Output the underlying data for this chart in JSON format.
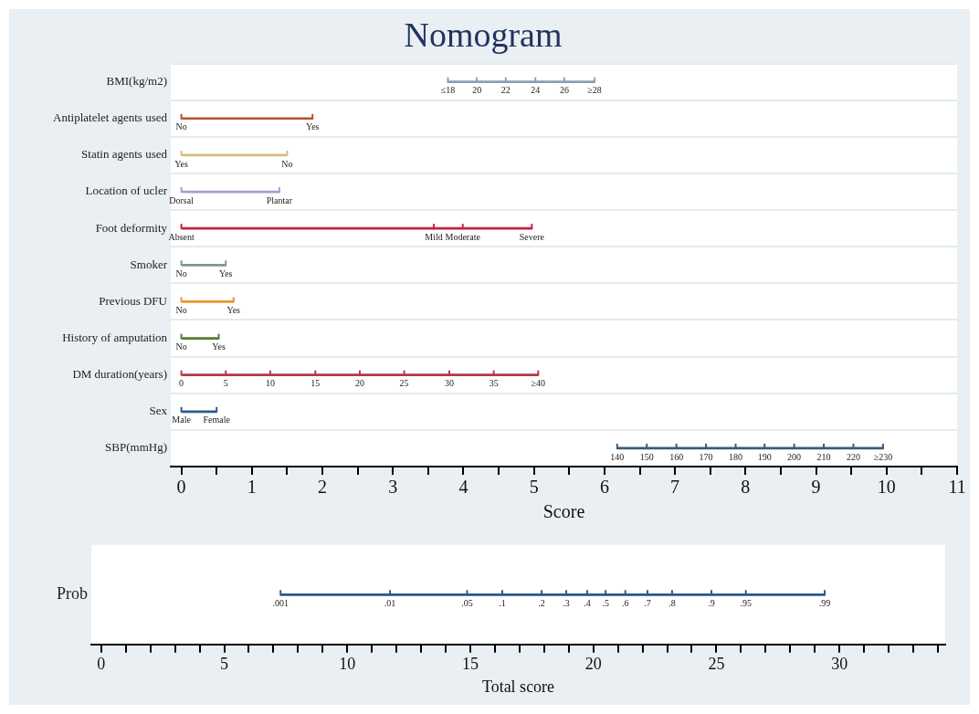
{
  "chart_data": [
    {
      "type": "bar",
      "orientation": "horizontal",
      "title": "Nomogram",
      "xlabel": "Score",
      "categories": [
        "BMI(kg/m2)",
        "Antiplatelet agents used",
        "Statin agents used",
        "Location of ucler",
        "Foot deformity",
        "Smoker",
        "Previous DFU",
        "History of amputation",
        "DM duration(years)",
        "Sex",
        "SBP(mmHg)"
      ],
      "base": [
        3.78,
        0,
        0,
        0,
        0,
        0,
        0,
        0,
        0,
        0,
        6.18
      ],
      "values": [
        2.08,
        1.86,
        1.5,
        1.39,
        4.97,
        0.63,
        0.74,
        0.53,
        5.06,
        0.5,
        3.77
      ],
      "colors": [
        "#8aa0b8",
        "#b5532e",
        "#d8c07a",
        "#a99ad8",
        "#c8213f",
        "#7a9a8a",
        "#e8962a",
        "#5a7a30",
        "#b03a48",
        "#2a5a8a",
        "#3a5a7a"
      ],
      "xlim": [
        -0.15,
        11
      ],
      "xticks": [
        0,
        {
          "value": 0.5,
          "label": null
        },
        1,
        {
          "value": 1.5,
          "label": null
        },
        2,
        {
          "value": 2.5,
          "label": null
        },
        3,
        {
          "value": 3.5,
          "label": null
        },
        4,
        {
          "value": 4.5,
          "label": null
        },
        5,
        {
          "value": 5.5,
          "label": null
        },
        6,
        {
          "value": 6.5,
          "label": null
        },
        7,
        {
          "value": 7.5,
          "label": null
        },
        8,
        {
          "value": 8.5,
          "label": null
        },
        9,
        {
          "value": 9.5,
          "label": null
        },
        10,
        {
          "value": 10.5,
          "label": null
        },
        11
      ],
      "grid": "y",
      "annotations": [
        {
          "text": "≤18",
          "x": 3.78,
          "y": "BMI(kg/m2)"
        },
        {
          "text": "20",
          "x": 4.19,
          "y": "BMI(kg/m2)"
        },
        {
          "text": "22",
          "x": 4.6,
          "y": "BMI(kg/m2)"
        },
        {
          "text": "24",
          "x": 5.02,
          "y": "BMI(kg/m2)"
        },
        {
          "text": "26",
          "x": 5.43,
          "y": "BMI(kg/m2)"
        },
        {
          "text": "≥28",
          "x": 5.86,
          "y": "BMI(kg/m2)"
        },
        {
          "text": "No",
          "x": 0,
          "y": "Antiplatelet agents used"
        },
        {
          "text": "Yes",
          "x": 1.86,
          "y": "Antiplatelet agents used"
        },
        {
          "text": "Yes",
          "x": 0,
          "y": "Statin agents used"
        },
        {
          "text": "No",
          "x": 1.5,
          "y": "Statin agents used"
        },
        {
          "text": "Dorsal",
          "x": 0,
          "y": "Location of ucler"
        },
        {
          "text": "Plantar",
          "x": 1.39,
          "y": "Location of ucler"
        },
        {
          "text": "Absent",
          "x": 0,
          "y": "Foot deformity"
        },
        {
          "text": "Mild",
          "x": 3.58,
          "y": "Foot deformity"
        },
        {
          "text": "Moderate",
          "x": 3.99,
          "y": "Foot deformity"
        },
        {
          "text": "Severe",
          "x": 4.97,
          "y": "Foot deformity"
        },
        {
          "text": "No",
          "x": 0,
          "y": "Smoker"
        },
        {
          "text": "Yes",
          "x": 0.63,
          "y": "Smoker"
        },
        {
          "text": "No",
          "x": 0,
          "y": "Previous DFU"
        },
        {
          "text": "Yes",
          "x": 0.74,
          "y": "Previous DFU"
        },
        {
          "text": "No",
          "x": 0,
          "y": "History of amputation"
        },
        {
          "text": "Yes",
          "x": 0.53,
          "y": "History of amputation"
        },
        {
          "text": "0",
          "x": 0,
          "y": "DM duration(years)"
        },
        {
          "text": "5",
          "x": 0.63,
          "y": "DM duration(years)"
        },
        {
          "text": "10",
          "x": 1.26,
          "y": "DM duration(years)"
        },
        {
          "text": "15",
          "x": 1.9,
          "y": "DM duration(years)"
        },
        {
          "text": "20",
          "x": 2.53,
          "y": "DM duration(years)"
        },
        {
          "text": "25",
          "x": 3.16,
          "y": "DM duration(years)"
        },
        {
          "text": "30",
          "x": 3.8,
          "y": "DM duration(years)"
        },
        {
          "text": "35",
          "x": 4.43,
          "y": "DM duration(years)"
        },
        {
          "text": "≥40",
          "x": 5.06,
          "y": "DM duration(years)"
        },
        {
          "text": "Male",
          "x": 0,
          "y": "Sex"
        },
        {
          "text": "Female",
          "x": 0.5,
          "y": "Sex"
        },
        {
          "text": "140",
          "x": 6.18,
          "y": "SBP(mmHg)"
        },
        {
          "text": "150",
          "x": 6.6,
          "y": "SBP(mmHg)"
        },
        {
          "text": "160",
          "x": 7.02,
          "y": "SBP(mmHg)"
        },
        {
          "text": "170",
          "x": 7.44,
          "y": "SBP(mmHg)"
        },
        {
          "text": "180",
          "x": 7.86,
          "y": "SBP(mmHg)"
        },
        {
          "text": "190",
          "x": 8.27,
          "y": "SBP(mmHg)"
        },
        {
          "text": "200",
          "x": 8.69,
          "y": "SBP(mmHg)"
        },
        {
          "text": "210",
          "x": 9.11,
          "y": "SBP(mmHg)"
        },
        {
          "text": "220",
          "x": 9.53,
          "y": "SBP(mmHg)"
        },
        {
          "text": "≥230",
          "x": 9.95,
          "y": "SBP(mmHg)"
        }
      ]
    },
    {
      "type": "bar",
      "orientation": "horizontal",
      "xlabel": "Total score",
      "categories": [
        "Prob"
      ],
      "base": [
        7.29
      ],
      "values": [
        22.11
      ],
      "colors": [
        "#2a5a8a"
      ],
      "xlim": [
        -0.4,
        34.3
      ],
      "xticks": [
        0,
        {
          "value": 1,
          "label": null
        },
        {
          "value": 2,
          "label": null
        },
        {
          "value": 3,
          "label": null
        },
        {
          "value": 4,
          "label": null
        },
        5,
        {
          "value": 6,
          "label": null
        },
        {
          "value": 7,
          "label": null
        },
        {
          "value": 8,
          "label": null
        },
        {
          "value": 9,
          "label": null
        },
        10,
        {
          "value": 11,
          "label": null
        },
        {
          "value": 12,
          "label": null
        },
        {
          "value": 13,
          "label": null
        },
        {
          "value": 14,
          "label": null
        },
        15,
        {
          "value": 16,
          "label": null
        },
        {
          "value": 17,
          "label": null
        },
        {
          "value": 18,
          "label": null
        },
        {
          "value": 19,
          "label": null
        },
        20,
        {
          "value": 21,
          "label": null
        },
        {
          "value": 22,
          "label": null
        },
        {
          "value": 23,
          "label": null
        },
        {
          "value": 24,
          "label": null
        },
        25,
        {
          "value": 26,
          "label": null
        },
        {
          "value": 27,
          "label": null
        },
        {
          "value": 28,
          "label": null
        },
        {
          "value": 29,
          "label": null
        },
        30,
        {
          "value": 31,
          "label": null
        },
        {
          "value": 32,
          "label": null
        },
        {
          "value": 33,
          "label": null
        },
        {
          "value": 34,
          "label": null
        }
      ],
      "annotations": [
        {
          "text": ".001",
          "x": 7.29,
          "y": "Prob"
        },
        {
          "text": ".01",
          "x": 11.74,
          "y": "Prob"
        },
        {
          "text": ".05",
          "x": 14.87,
          "y": "Prob"
        },
        {
          "text": ".1",
          "x": 16.3,
          "y": "Prob"
        },
        {
          "text": ".2",
          "x": 17.9,
          "y": "Prob"
        },
        {
          "text": ".3",
          "x": 18.9,
          "y": "Prob"
        },
        {
          "text": ".4",
          "x": 19.75,
          "y": "Prob"
        },
        {
          "text": ".5",
          "x": 20.5,
          "y": "Prob"
        },
        {
          "text": ".6",
          "x": 21.3,
          "y": "Prob"
        },
        {
          "text": ".7",
          "x": 22.2,
          "y": "Prob"
        },
        {
          "text": ".8",
          "x": 23.2,
          "y": "Prob"
        },
        {
          "text": ".9",
          "x": 24.8,
          "y": "Prob"
        },
        {
          "text": ".95",
          "x": 26.2,
          "y": "Prob"
        },
        {
          "text": ".99",
          "x": 29.4,
          "y": "Prob"
        }
      ]
    }
  ]
}
